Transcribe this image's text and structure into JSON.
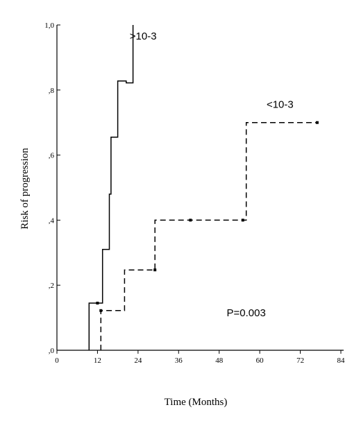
{
  "chart_data": {
    "type": "line",
    "step": true,
    "title": "",
    "xlabel": "Time (Months)",
    "ylabel": "Risk of progression",
    "xlim": [
      0,
      84
    ],
    "ylim": [
      0,
      1
    ],
    "x_ticks": [
      0,
      12,
      24,
      36,
      48,
      60,
      72,
      84
    ],
    "x_tick_labels": [
      "0",
      "12",
      "24",
      "36",
      "48",
      "60",
      "72",
      "84"
    ],
    "y_ticks": [
      0,
      0.2,
      0.4,
      0.6,
      0.8,
      1.0
    ],
    "y_tick_labels": [
      ",0",
      ",2",
      ",4",
      ",6",
      ",8",
      "1,0"
    ],
    "grid": false,
    "series": [
      {
        "name": ">10-3",
        "style": "solid",
        "color": "#000000",
        "points": [
          [
            9.5,
            0
          ],
          [
            9.5,
            0.145
          ],
          [
            13.5,
            0.145
          ],
          [
            13.5,
            0.31
          ],
          [
            15.5,
            0.31
          ],
          [
            15.5,
            0.48
          ],
          [
            16,
            0.48
          ],
          [
            16,
            0.655
          ],
          [
            18,
            0.655
          ],
          [
            18,
            0.828
          ],
          [
            20.5,
            0.828
          ],
          [
            20.5,
            0.822
          ],
          [
            22.5,
            0.822
          ],
          [
            22.5,
            1.0
          ]
        ],
        "censored": [
          [
            12,
            0.145
          ]
        ]
      },
      {
        "name": "<10-3",
        "style": "dashed",
        "color": "#000000",
        "points": [
          [
            13,
            0
          ],
          [
            13,
            0.122
          ],
          [
            20,
            0.122
          ],
          [
            20,
            0.247
          ],
          [
            29,
            0.247
          ],
          [
            29,
            0.4
          ],
          [
            56,
            0.4
          ],
          [
            56,
            0.7
          ],
          [
            77,
            0.7
          ]
        ],
        "censored": [
          [
            13,
            0.122
          ],
          [
            29,
            0.247
          ],
          [
            39.5,
            0.4
          ],
          [
            55,
            0.4
          ],
          [
            77,
            0.7
          ]
        ]
      }
    ],
    "annotations": [
      {
        "text": ">10-3",
        "x": 25.5,
        "y": 0.955
      },
      {
        "text": "<10-3",
        "x": 66,
        "y": 0.745
      },
      {
        "text": "P=0.003",
        "x": 56,
        "y": 0.105
      }
    ]
  }
}
